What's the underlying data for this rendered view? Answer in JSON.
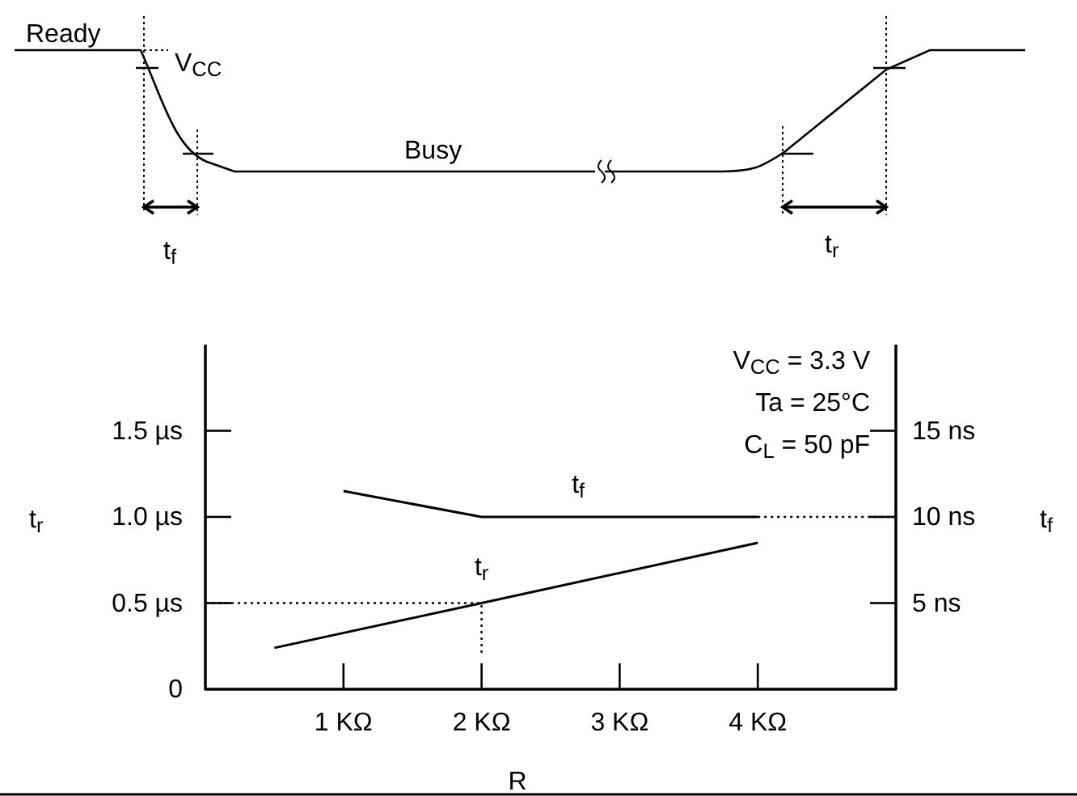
{
  "chart_data": {
    "type": "line",
    "xlabel": "R",
    "ylabel": "t$_{r}$",
    "y2label": "t$_{f}$",
    "xlim": [
      0,
      5
    ],
    "xticks": [
      {
        "value": 1,
        "label": "1  KΩ"
      },
      {
        "value": 2,
        "label": "2  KΩ"
      },
      {
        "value": 3,
        "label": "3  KΩ"
      },
      {
        "value": 4,
        "label": "4  KΩ"
      }
    ],
    "ylim": [
      0,
      2
    ],
    "yticks": [
      {
        "value": 0,
        "label": "0"
      },
      {
        "value": 0.5,
        "label": "0.5  µs"
      },
      {
        "value": 1,
        "label": "1.0  µs"
      },
      {
        "value": 1.5,
        "label": "1.5  µs"
      }
    ],
    "y2lim": [
      0,
      20
    ],
    "y2ticks": [
      {
        "value": 5,
        "label": "5 ns"
      },
      {
        "value": 10,
        "label": "10 ns"
      },
      {
        "value": 15,
        "label": "15 ns"
      }
    ],
    "grid": false,
    "marker": "none",
    "series": [
      {
        "name": "t$_{r}$",
        "color": "#000000",
        "x": [
          0.5,
          2,
          4
        ],
        "values": [
          0.24,
          0.5,
          0.85
        ],
        "line_style": "solid"
      },
      {
        "name": "t$_{f}$",
        "color": "#000000",
        "axis": "y2",
        "x": [
          1,
          2,
          4
        ],
        "values": [
          11.5,
          10,
          10
        ],
        "line_style": "solid"
      },
      {
        "color": "#000000",
        "axis": "y2",
        "x": [
          4,
          5
        ],
        "values": [
          10,
          10
        ],
        "line_style": "dotted"
      },
      {
        "color": "#000000",
        "x": [
          0,
          2,
          2
        ],
        "values": [
          0.5,
          0.5,
          0.2
        ],
        "line_style": "dotted"
      }
    ],
    "annotations": [
      "V$_{CC}$ = 3.3 V",
      "Ta = 25°C",
      "C$_{L}$ = 50 pF",
      "Ready",
      "V$_{CC}$",
      "Busy",
      "t$_{f}$",
      "t$_{r}$"
    ]
  }
}
